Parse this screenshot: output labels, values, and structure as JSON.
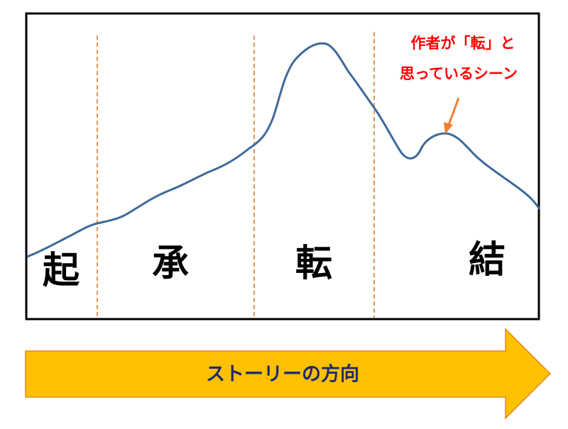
{
  "stages": [
    "起",
    "承",
    "転",
    "結"
  ],
  "annotation": {
    "lines": [
      "作者が「転」と",
      "思っているシーン"
    ]
  },
  "arrow": {
    "label": "ストーリーの方向"
  }
}
